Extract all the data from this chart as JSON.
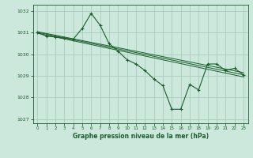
{
  "title": "Graphe pression niveau de la mer (hPa)",
  "bg_color": "#cce8dd",
  "grid_color": "#aaccbb",
  "line_color": "#1a5c2a",
  "xlim": [
    -0.5,
    23.5
  ],
  "ylim": [
    1026.8,
    1032.3
  ],
  "yticks": [
    1027,
    1028,
    1029,
    1030,
    1031,
    1032
  ],
  "xticks": [
    0,
    1,
    2,
    3,
    4,
    5,
    6,
    7,
    8,
    9,
    10,
    11,
    12,
    13,
    14,
    15,
    16,
    17,
    18,
    19,
    20,
    21,
    22,
    23
  ],
  "straight_lines": [
    {
      "x0": 0,
      "y0": 1031.05,
      "x1": 23,
      "y1": 1029.15
    },
    {
      "x0": 0,
      "y0": 1031.02,
      "x1": 23,
      "y1": 1029.05
    },
    {
      "x0": 0,
      "y0": 1030.98,
      "x1": 23,
      "y1": 1028.95
    }
  ],
  "main_series_x": [
    0,
    1,
    2,
    3,
    4,
    5,
    6,
    7,
    8,
    9,
    10,
    11,
    12,
    13,
    14,
    15,
    16,
    17,
    18,
    19,
    20,
    21,
    22,
    23
  ],
  "main_series_y": [
    1031.0,
    1030.85,
    1030.8,
    1030.75,
    1030.7,
    1031.2,
    1031.9,
    1031.35,
    1030.5,
    1030.15,
    1029.75,
    1029.55,
    1029.25,
    1028.85,
    1028.55,
    1027.45,
    1027.45,
    1028.6,
    1028.35,
    1029.55,
    1029.55,
    1029.25,
    1029.35,
    1029.05
  ]
}
